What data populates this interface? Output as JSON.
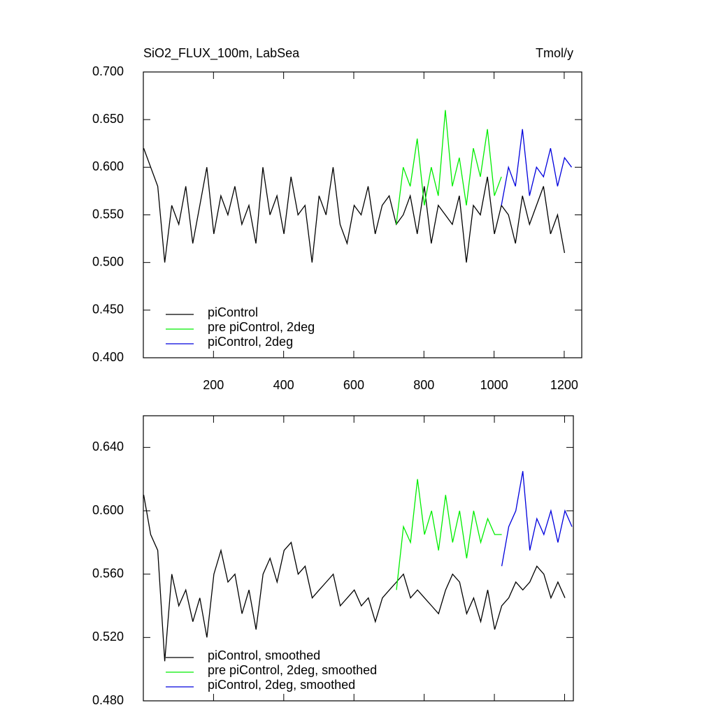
{
  "chart_data": [
    {
      "type": "line",
      "title": "SiO2_FLUX_100m, LabSea",
      "units": "Tmol/y",
      "xlim": [
        0,
        1250
      ],
      "xticks": [
        200,
        400,
        600,
        800,
        1000,
        1200
      ],
      "xticklabels": true,
      "ylim": [
        0.4,
        0.7
      ],
      "yticks": [
        {
          "value": 0.4,
          "label": "0.400"
        },
        {
          "value": 0.45,
          "label": "0.450"
        },
        {
          "value": 0.5,
          "label": "0.500"
        },
        {
          "value": 0.55,
          "label": "0.550"
        },
        {
          "value": 0.6,
          "label": "0.600"
        },
        {
          "value": 0.65,
          "label": "0.650"
        },
        {
          "value": 0.7,
          "label": "0.700"
        }
      ],
      "legend": "lower left",
      "series": [
        {
          "name": "piControl",
          "color": "#000000",
          "x": [
            1,
            21,
            41,
            61,
            81,
            101,
            121,
            141,
            161,
            181,
            201,
            221,
            241,
            261,
            281,
            301,
            321,
            341,
            361,
            381,
            401,
            421,
            441,
            461,
            481,
            501,
            521,
            541,
            561,
            581,
            601,
            621,
            641,
            661,
            681,
            701,
            721,
            741,
            761,
            781,
            801,
            821,
            841,
            861,
            881,
            901,
            921,
            941,
            961,
            981,
            1001,
            1021,
            1041,
            1061,
            1081,
            1101,
            1121,
            1141,
            1161,
            1181,
            1201
          ],
          "values": [
            0.62,
            0.6,
            0.58,
            0.5,
            0.56,
            0.54,
            0.58,
            0.52,
            0.56,
            0.6,
            0.53,
            0.57,
            0.55,
            0.58,
            0.54,
            0.56,
            0.52,
            0.6,
            0.55,
            0.57,
            0.53,
            0.59,
            0.55,
            0.56,
            0.5,
            0.57,
            0.55,
            0.6,
            0.54,
            0.52,
            0.56,
            0.55,
            0.58,
            0.53,
            0.56,
            0.57,
            0.54,
            0.55,
            0.57,
            0.53,
            0.58,
            0.52,
            0.56,
            0.55,
            0.54,
            0.57,
            0.5,
            0.56,
            0.55,
            0.59,
            0.53,
            0.56,
            0.55,
            0.52,
            0.57,
            0.54,
            0.56,
            0.58,
            0.53,
            0.55,
            0.51
          ]
        },
        {
          "name": "pre piControl, 2deg",
          "color": "#00ee00",
          "x": [
            721,
            741,
            761,
            781,
            801,
            821,
            841,
            861,
            881,
            901,
            921,
            941,
            961,
            981,
            1001,
            1021
          ],
          "values": [
            0.54,
            0.6,
            0.58,
            0.63,
            0.56,
            0.6,
            0.57,
            0.66,
            0.58,
            0.61,
            0.56,
            0.62,
            0.59,
            0.64,
            0.57,
            0.59
          ]
        },
        {
          "name": "piControl, 2deg",
          "color": "#0000dd",
          "x": [
            1021,
            1041,
            1061,
            1081,
            1101,
            1121,
            1141,
            1161,
            1181,
            1201,
            1221
          ],
          "values": [
            0.56,
            0.6,
            0.58,
            0.64,
            0.57,
            0.6,
            0.59,
            0.62,
            0.58,
            0.61,
            0.6
          ]
        }
      ]
    },
    {
      "type": "line",
      "xlim": [
        0,
        1225
      ],
      "xticks": [
        200,
        400,
        600,
        800,
        1000,
        1200
      ],
      "xticklabels": false,
      "ylim": [
        0.48,
        0.66
      ],
      "yticks": [
        {
          "value": 0.48,
          "label": "0.480"
        },
        {
          "value": 0.52,
          "label": "0.520"
        },
        {
          "value": 0.56,
          "label": "0.560"
        },
        {
          "value": 0.6,
          "label": "0.600"
        },
        {
          "value": 0.64,
          "label": "0.640"
        }
      ],
      "legend": "lower left",
      "series": [
        {
          "name": "piControl, smoothed",
          "color": "#000000",
          "x": [
            1,
            21,
            41,
            61,
            81,
            101,
            121,
            141,
            161,
            181,
            201,
            221,
            241,
            261,
            281,
            301,
            321,
            341,
            361,
            381,
            401,
            421,
            441,
            461,
            481,
            501,
            521,
            541,
            561,
            581,
            601,
            621,
            641,
            661,
            681,
            701,
            721,
            741,
            761,
            781,
            801,
            821,
            841,
            861,
            881,
            901,
            921,
            941,
            961,
            981,
            1001,
            1021,
            1041,
            1061,
            1081,
            1101,
            1121,
            1141,
            1161,
            1181,
            1201
          ],
          "values": [
            0.61,
            0.585,
            0.575,
            0.505,
            0.56,
            0.54,
            0.55,
            0.53,
            0.545,
            0.52,
            0.56,
            0.575,
            0.555,
            0.56,
            0.535,
            0.55,
            0.525,
            0.56,
            0.57,
            0.555,
            0.575,
            0.58,
            0.56,
            0.565,
            0.545,
            0.55,
            0.555,
            0.56,
            0.54,
            0.545,
            0.55,
            0.54,
            0.545,
            0.53,
            0.545,
            0.55,
            0.555,
            0.56,
            0.545,
            0.55,
            0.545,
            0.54,
            0.535,
            0.55,
            0.56,
            0.555,
            0.535,
            0.545,
            0.53,
            0.55,
            0.525,
            0.54,
            0.545,
            0.555,
            0.55,
            0.555,
            0.565,
            0.56,
            0.545,
            0.555,
            0.545
          ]
        },
        {
          "name": "pre piControl, 2deg, smoothed",
          "color": "#00ee00",
          "x": [
            721,
            741,
            761,
            781,
            801,
            821,
            841,
            861,
            881,
            901,
            921,
            941,
            961,
            981,
            1001,
            1021
          ],
          "values": [
            0.55,
            0.59,
            0.58,
            0.62,
            0.585,
            0.6,
            0.575,
            0.61,
            0.58,
            0.6,
            0.57,
            0.6,
            0.58,
            0.595,
            0.585,
            0.585
          ]
        },
        {
          "name": "piControl, 2deg, smoothed",
          "color": "#0000dd",
          "x": [
            1021,
            1041,
            1061,
            1081,
            1101,
            1121,
            1141,
            1161,
            1181,
            1201,
            1221
          ],
          "values": [
            0.565,
            0.59,
            0.6,
            0.625,
            0.575,
            0.595,
            0.585,
            0.6,
            0.58,
            0.6,
            0.59
          ]
        }
      ]
    }
  ]
}
